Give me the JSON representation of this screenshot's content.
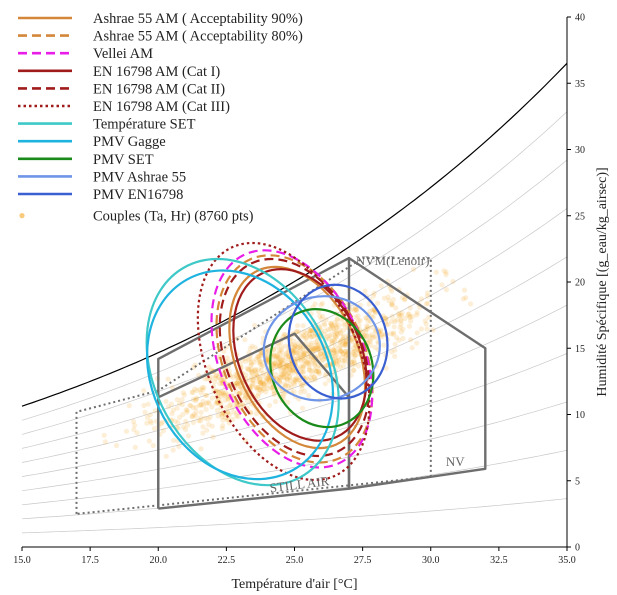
{
  "chart_data": {
    "type": "line",
    "xlabel": "Température d'air [°C]",
    "ylabel": "Humidité Spécifique [(g_eau/kg_airsec)]",
    "xlim": [
      15,
      35
    ],
    "ylim": [
      0,
      40
    ],
    "xticks": [
      "15.0",
      "17.5",
      "20.0",
      "22.5",
      "25.0",
      "27.5",
      "30.0",
      "32.5",
      "35.0"
    ],
    "yticks": [
      "0",
      "5",
      "10",
      "15",
      "20",
      "25",
      "30",
      "35",
      "40"
    ],
    "legend_position": "top-left",
    "legend": [
      {
        "label": "Ashrae 55 AM ( Acceptability 90%)",
        "color": "#d4873a",
        "dash": "solid"
      },
      {
        "label": "Ashrae 55 AM ( Acceptability 80%)",
        "color": "#d4873a",
        "dash": "dashed"
      },
      {
        "label": "Vellei AM",
        "color": "#e81ee8",
        "dash": "dashed"
      },
      {
        "label": "EN 16798 AM (Cat I)",
        "color": "#a01c1c",
        "dash": "solid"
      },
      {
        "label": "EN 16798 AM (Cat II)",
        "color": "#a01c1c",
        "dash": "dashed"
      },
      {
        "label": "EN 16798 AM (Cat III)",
        "color": "#a01c1c",
        "dash": "dotted"
      },
      {
        "label": "Température SET",
        "color": "#3ec8c8",
        "dash": "solid"
      },
      {
        "label": "PMV Gagge",
        "color": "#1fb3e0",
        "dash": "solid"
      },
      {
        "label": "PMV SET",
        "color": "#1a8a1a",
        "dash": "solid"
      },
      {
        "label": "PMV Ashrae 55",
        "color": "#6f95e8",
        "dash": "solid"
      },
      {
        "label": "PMV EN16798",
        "color": "#3a5fd0",
        "dash": "solid"
      },
      {
        "label": "Couples (Ta, Hr) (8760 pts)",
        "color": "#f5a623",
        "dash": "point"
      }
    ],
    "annotations": [
      {
        "text": "NVM(Lenoir)",
        "x": 28.6,
        "y": 21.3
      },
      {
        "text": "STILL AIR",
        "x": 25.2,
        "y": 4.4
      },
      {
        "text": "NV",
        "x": 30.9,
        "y": 6.1
      }
    ],
    "saturation_curve": {
      "x": [
        15,
        20,
        25,
        30,
        35
      ],
      "y": [
        10.6,
        14.7,
        20.1,
        27.3,
        36.6
      ]
    },
    "zones": [
      {
        "name": "NVM(Lenoir)",
        "style": "dotted",
        "x": [
          17,
          17,
          20,
          27.5,
          30,
          30,
          17
        ],
        "y": [
          2.5,
          10.2,
          11.8,
          21.8,
          21.8,
          5.3,
          2.5
        ]
      },
      {
        "name": "STILL AIR",
        "style": "solid",
        "x": [
          20,
          20,
          27,
          27,
          20
        ],
        "y": [
          2.9,
          14.2,
          21.8,
          4.4,
          2.9
        ]
      },
      {
        "name": "inner",
        "style": "solid",
        "x": [
          20,
          20,
          25,
          27,
          27
        ],
        "y": [
          2.9,
          11.3,
          16.1,
          11.3,
          4.4
        ]
      },
      {
        "name": "NV",
        "style": "solid",
        "x": [
          27,
          32,
          32,
          27
        ],
        "y": [
          4.4,
          5.9,
          15.0,
          21.8
        ]
      }
    ],
    "ellipses": [
      {
        "series": "Ashrae 55 AM ( Acceptability 90%)",
        "cx": 25.1,
        "cy": 14.3,
        "rx": 3.5,
        "ry": 4.6,
        "angle": 14
      },
      {
        "series": "Ashrae 55 AM ( Acceptability 80%)",
        "cx": 25.0,
        "cy": 14.2,
        "rx": 4.0,
        "ry": 5.3,
        "angle": 14
      },
      {
        "series": "Vellei AM",
        "cx": 24.9,
        "cy": 14.2,
        "rx": 4.2,
        "ry": 5.4,
        "angle": 14
      },
      {
        "series": "EN 16798 AM (Cat I)",
        "cx": 25.2,
        "cy": 14.5,
        "rx": 3.3,
        "ry": 4.6,
        "angle": 14
      },
      {
        "series": "EN 16798 AM (Cat II)",
        "cx": 25.0,
        "cy": 14.3,
        "rx": 3.8,
        "ry": 5.1,
        "angle": 14
      },
      {
        "series": "EN 16798 AM (Cat III)",
        "cx": 24.6,
        "cy": 14.0,
        "rx": 4.6,
        "ry": 5.7,
        "angle": 14
      },
      {
        "series": "Température SET",
        "cx": 23.1,
        "cy": 13.2,
        "rx": 4.4,
        "ry": 6.6,
        "angle": 19
      },
      {
        "series": "PMV Gagge",
        "cx": 23.0,
        "cy": 13.0,
        "rx": 4.0,
        "ry": 6.6,
        "angle": 19
      },
      {
        "series": "PMV SET",
        "cx": 26.0,
        "cy": 13.5,
        "rx": 2.2,
        "ry": 3.8,
        "angle": 10
      },
      {
        "series": "PMV Ashrae 55",
        "cx": 26.0,
        "cy": 15.0,
        "rx": 1.9,
        "ry": 4.4,
        "angle": 2
      },
      {
        "series": "PMV EN16798",
        "cx": 26.6,
        "cy": 15.5,
        "rx": 2.1,
        "ry": 3.7,
        "angle": 2
      }
    ],
    "scatter_cloud": {
      "series": "Couples (Ta, Hr) (8760 pts)",
      "points_drawn": 1200,
      "center": [
        25.0,
        14.0
      ],
      "x_range": [
        17.5,
        31.5
      ],
      "y_range": [
        6.5,
        21.5
      ]
    }
  }
}
